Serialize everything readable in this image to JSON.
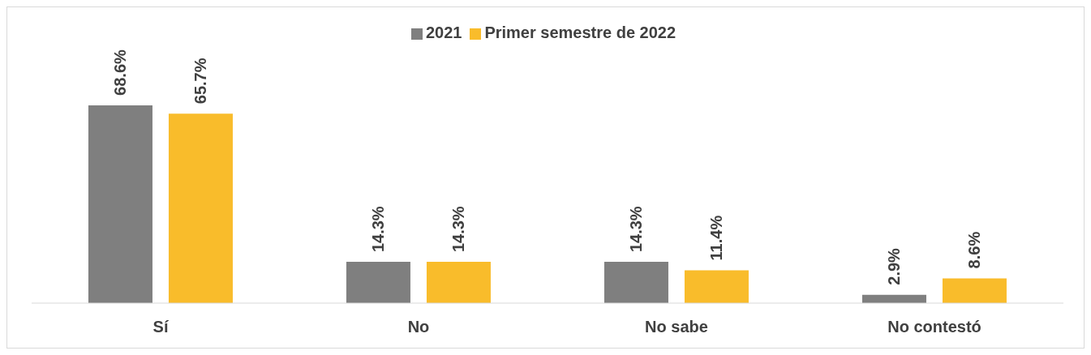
{
  "chart_data": {
    "type": "bar",
    "categories": [
      "Sí",
      "No",
      "No sabe",
      "No contestó"
    ],
    "series": [
      {
        "name": "2021",
        "color": "#7f7f7f",
        "values": [
          68.6,
          14.3,
          14.3,
          2.9
        ],
        "value_labels": [
          "68.6%",
          "14.3%",
          "14.3%",
          "2.9%"
        ]
      },
      {
        "name": "Primer semestre de 2022",
        "color": "#f9bc2b",
        "values": [
          65.7,
          14.3,
          11.4,
          8.6
        ],
        "value_labels": [
          "65.7%",
          "14.3%",
          "11.4%",
          "8.6%"
        ]
      }
    ],
    "legend": "top",
    "grid": false
  }
}
